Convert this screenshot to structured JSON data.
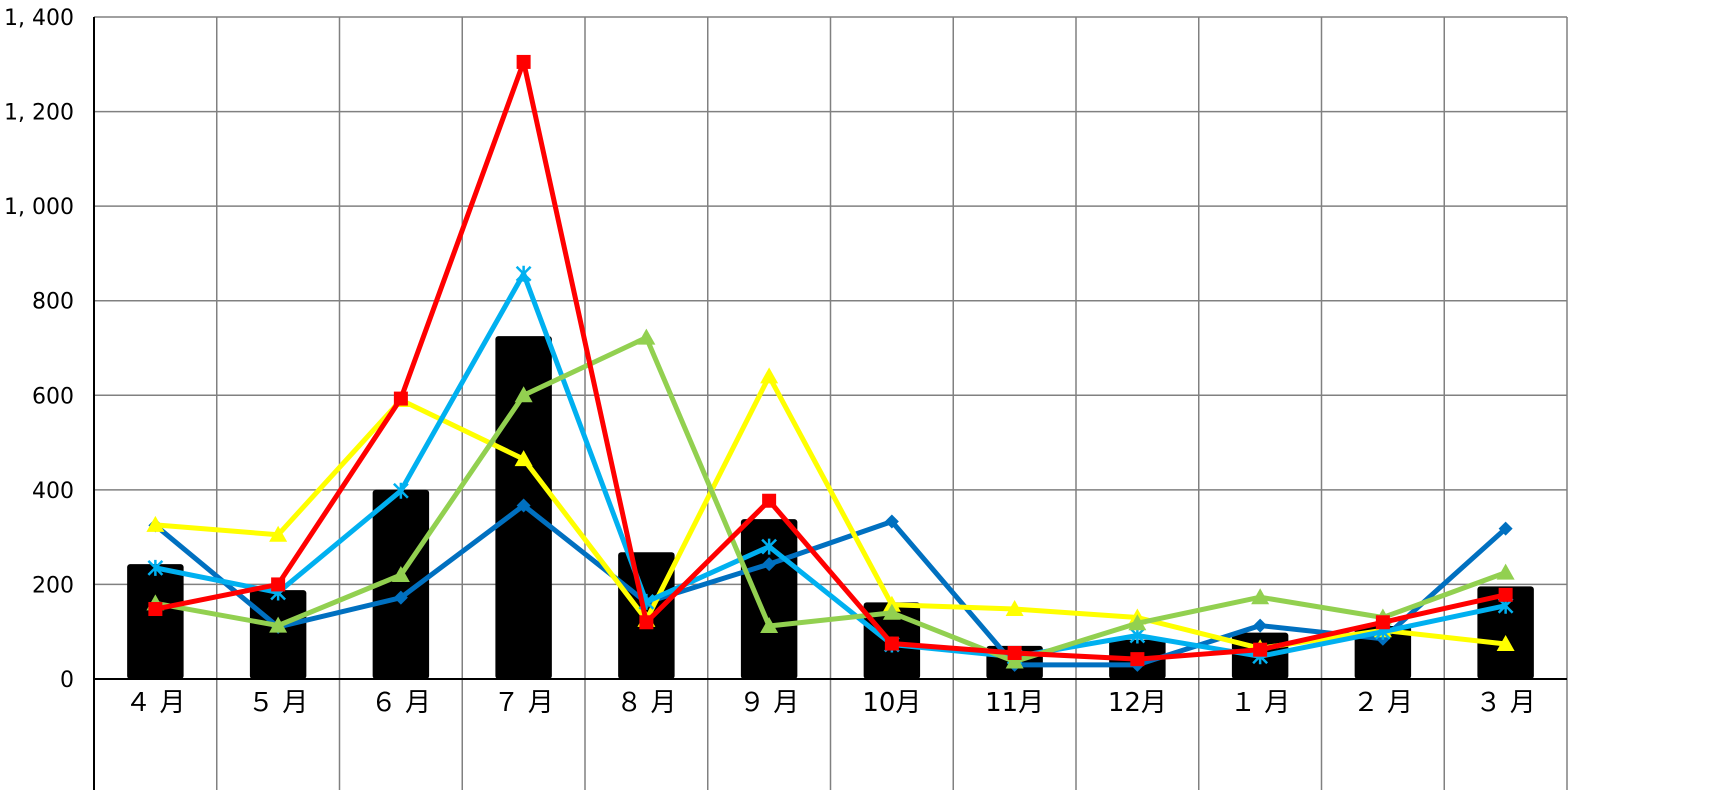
{
  "chart_data": {
    "type": "bar",
    "title": "",
    "xlabel": "",
    "ylabel": "",
    "categories": [
      "４ 月",
      "５ 月",
      "６ 月",
      "７ 月",
      "８ 月",
      "９ 月",
      "10月",
      "11月",
      "12月",
      "１ 月",
      "２ 月",
      "３ 月"
    ],
    "ylim": [
      0,
      1400
    ],
    "yticks": [
      0,
      200,
      400,
      600,
      800,
      1000,
      1200,
      1400
    ],
    "ytick_labels": [
      "0",
      "200",
      "400",
      "600",
      "800",
      "1, 000",
      "1, 200",
      "1, 400"
    ],
    "grid": true,
    "bars": {
      "color": "#000000",
      "values": [
        243,
        188,
        400,
        725,
        268,
        338,
        162,
        70,
        83,
        98,
        112,
        196
      ]
    },
    "series": [
      {
        "color": "#0070C0",
        "marker": "diamond",
        "values": [
          325,
          110,
          172,
          367,
          162,
          243,
          333,
          30,
          30,
          113,
          85,
          318
        ]
      },
      {
        "color": "#FFFF00",
        "marker": "triangle",
        "values": [
          326,
          305,
          590,
          465,
          125,
          640,
          157,
          148,
          130,
          65,
          103,
          74
        ]
      },
      {
        "color": "#00B0F0",
        "marker": "star",
        "values": [
          235,
          183,
          398,
          857,
          163,
          280,
          73,
          47,
          92,
          48,
          100,
          155
        ]
      },
      {
        "color": "#92D050",
        "marker": "triangle",
        "values": [
          160,
          113,
          220,
          600,
          722,
          112,
          140,
          37,
          118,
          173,
          130,
          225
        ]
      },
      {
        "color": "#FF0000",
        "marker": "square",
        "values": [
          148,
          200,
          593,
          1305,
          120,
          377,
          75,
          55,
          42,
          62,
          120,
          178
        ]
      }
    ]
  }
}
